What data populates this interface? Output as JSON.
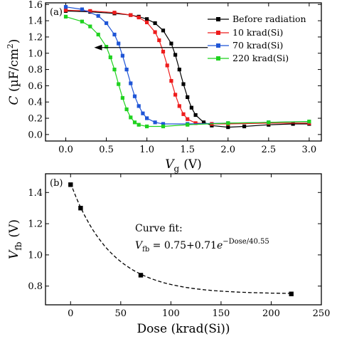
{
  "chart_data": [
    {
      "type": "line",
      "panel_label": "(a)",
      "ylabel_main": "C",
      "ylabel_unit": "(µF/cm",
      "ylabel_sup": "2",
      "ylabel_close": ")",
      "xlabel_main": "V",
      "xlabel_sub": "g",
      "xlabel_unit": "(V)",
      "xlim": [
        -0.25,
        3.15
      ],
      "ylim": [
        -0.08,
        1.62
      ],
      "xticks": [
        0.0,
        0.5,
        1.0,
        1.5,
        2.0,
        2.5,
        3.0
      ],
      "xtick_labels": [
        "0.0",
        "0.5",
        "1.0",
        "1.5",
        "2.0",
        "2.5",
        "3.0"
      ],
      "yticks": [
        0.0,
        0.2,
        0.4,
        0.6,
        0.8,
        1.0,
        1.2,
        1.4,
        1.6
      ],
      "ytick_labels": [
        "0.0",
        "0.2",
        "0.4",
        "0.6",
        "0.8",
        "1.0",
        "1.2",
        "1.4",
        "1.6"
      ],
      "legend_position": "top-right",
      "arrow": {
        "from": [
          1.75,
          1.07
        ],
        "to": [
          0.35,
          1.07
        ],
        "direction": "left"
      },
      "series": [
        {
          "name": "Before radiation",
          "color": "#000000",
          "marker": "square",
          "x": [
            0.0,
            0.3,
            0.6,
            0.8,
            0.9,
            1.0,
            1.1,
            1.2,
            1.3,
            1.35,
            1.4,
            1.45,
            1.5,
            1.55,
            1.6,
            1.7,
            1.8,
            2.0,
            2.2,
            2.5,
            2.8,
            3.0
          ],
          "y": [
            1.52,
            1.51,
            1.49,
            1.47,
            1.45,
            1.42,
            1.37,
            1.28,
            1.12,
            0.98,
            0.8,
            0.62,
            0.46,
            0.33,
            0.24,
            0.15,
            0.11,
            0.09,
            0.1,
            0.12,
            0.13,
            0.13
          ]
        },
        {
          "name": "10 krad(Si)",
          "color": "#ee1c1c",
          "marker": "square",
          "x": [
            0.0,
            0.3,
            0.6,
            0.8,
            0.9,
            1.0,
            1.1,
            1.15,
            1.2,
            1.25,
            1.3,
            1.35,
            1.4,
            1.45,
            1.5,
            1.6,
            1.8,
            2.0,
            2.5,
            3.0
          ],
          "y": [
            1.53,
            1.52,
            1.5,
            1.47,
            1.44,
            1.38,
            1.26,
            1.16,
            1.02,
            0.85,
            0.66,
            0.49,
            0.35,
            0.25,
            0.19,
            0.14,
            0.13,
            0.13,
            0.14,
            0.14
          ]
        },
        {
          "name": "70 krad(Si)",
          "color": "#1f55d6",
          "marker": "square",
          "x": [
            0.0,
            0.2,
            0.4,
            0.5,
            0.6,
            0.65,
            0.7,
            0.75,
            0.8,
            0.85,
            0.9,
            0.95,
            1.0,
            1.1,
            1.2,
            1.5,
            2.0,
            2.5,
            3.0
          ],
          "y": [
            1.57,
            1.54,
            1.46,
            1.37,
            1.23,
            1.12,
            0.97,
            0.8,
            0.63,
            0.47,
            0.35,
            0.26,
            0.2,
            0.15,
            0.13,
            0.13,
            0.14,
            0.15,
            0.16
          ]
        },
        {
          "name": "220 krad(Si)",
          "color": "#1fd21f",
          "marker": "square",
          "x": [
            0.0,
            0.2,
            0.3,
            0.4,
            0.5,
            0.55,
            0.6,
            0.65,
            0.7,
            0.75,
            0.8,
            0.85,
            0.9,
            1.0,
            1.2,
            1.5,
            2.0,
            2.5,
            3.0
          ],
          "y": [
            1.45,
            1.39,
            1.33,
            1.23,
            1.08,
            0.95,
            0.8,
            0.62,
            0.45,
            0.31,
            0.21,
            0.15,
            0.12,
            0.1,
            0.1,
            0.12,
            0.14,
            0.15,
            0.16
          ]
        }
      ]
    },
    {
      "type": "scatter",
      "panel_label": "(b)",
      "ylabel_main": "V",
      "ylabel_sub": "fb",
      "ylabel_unit": "(V)",
      "xlabel": "Dose (krad(Si))",
      "xlim": [
        -25,
        250
      ],
      "ylim": [
        0.68,
        1.52
      ],
      "xticks": [
        0,
        50,
        100,
        150,
        200,
        250
      ],
      "xtick_labels": [
        "0",
        "50",
        "100",
        "150",
        "200",
        "250"
      ],
      "yticks": [
        0.8,
        1.0,
        1.2,
        1.4
      ],
      "ytick_labels": [
        "0.8",
        "1.0",
        "1.2",
        "1.4"
      ],
      "points": {
        "x": [
          0,
          10,
          70,
          220
        ],
        "y": [
          1.45,
          1.3,
          0.87,
          0.75
        ]
      },
      "fit": {
        "style": "dashed",
        "a": 0.75,
        "b": 0.71,
        "tau": 40.55,
        "x_range": [
          0,
          220
        ]
      },
      "fit_title": "Curve fit:",
      "fit_eq_lhs": "V",
      "fit_eq_lhs_sub": "fb",
      "fit_eq_rhs": " = 0.75+0.71",
      "fit_eq_e": "e",
      "fit_eq_exp": "−Dose/40.55"
    }
  ]
}
